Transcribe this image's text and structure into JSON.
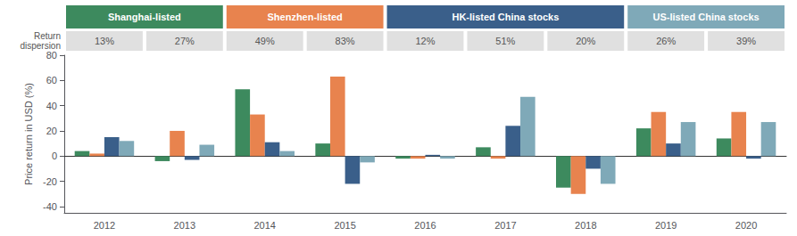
{
  "chart_data": {
    "type": "bar",
    "categories": [
      "2012",
      "2013",
      "2014",
      "2015",
      "2016",
      "2017",
      "2018",
      "2019",
      "2020"
    ],
    "series": [
      {
        "color": "#3d8a5e",
        "values": [
          4,
          -4,
          53,
          10,
          -2,
          7,
          -25,
          22,
          14
        ]
      },
      {
        "color": "#e8834e",
        "values": [
          2,
          20,
          33,
          63,
          -2,
          -2,
          -30,
          35,
          35
        ]
      },
      {
        "color": "#3a5f8a",
        "values": [
          15,
          -3,
          11,
          -22,
          1,
          24,
          -10,
          10,
          -2
        ]
      },
      {
        "color": "#7fa9b8",
        "values": [
          12,
          9,
          4,
          -5,
          -2,
          47,
          -22,
          27,
          27
        ]
      }
    ],
    "ylabel": "Price return in USD (%)",
    "ylim": [
      -45,
      80
    ],
    "yticks": [
      -40,
      -20,
      0,
      20,
      40,
      60,
      80
    ],
    "grid": false,
    "header": [
      {
        "text": "Shanghai-listed",
        "color": "#3d8a5e",
        "categories": [
          "2012",
          "2013"
        ]
      },
      {
        "text": "Shenzhen-listed",
        "color": "#e8834e",
        "categories": [
          "2014",
          "2015"
        ]
      },
      {
        "text": "HK-listed China stocks",
        "color": "#3a5f8a",
        "categories": [
          "2016",
          "2018"
        ]
      },
      {
        "text": "US-listed China stocks",
        "color": "#7fa9b8",
        "categories": [
          "2019",
          "2020"
        ]
      }
    ],
    "dispersion": {
      "title": "Return\ndispersion",
      "color": "#e0e0e0",
      "values": [
        13,
        27,
        49,
        83,
        12,
        51,
        20,
        26,
        39
      ],
      "value_labels": [
        "13%",
        "27%",
        "49%",
        "83%",
        "12%",
        "51%",
        "20%",
        "26%",
        "39%"
      ]
    }
  }
}
